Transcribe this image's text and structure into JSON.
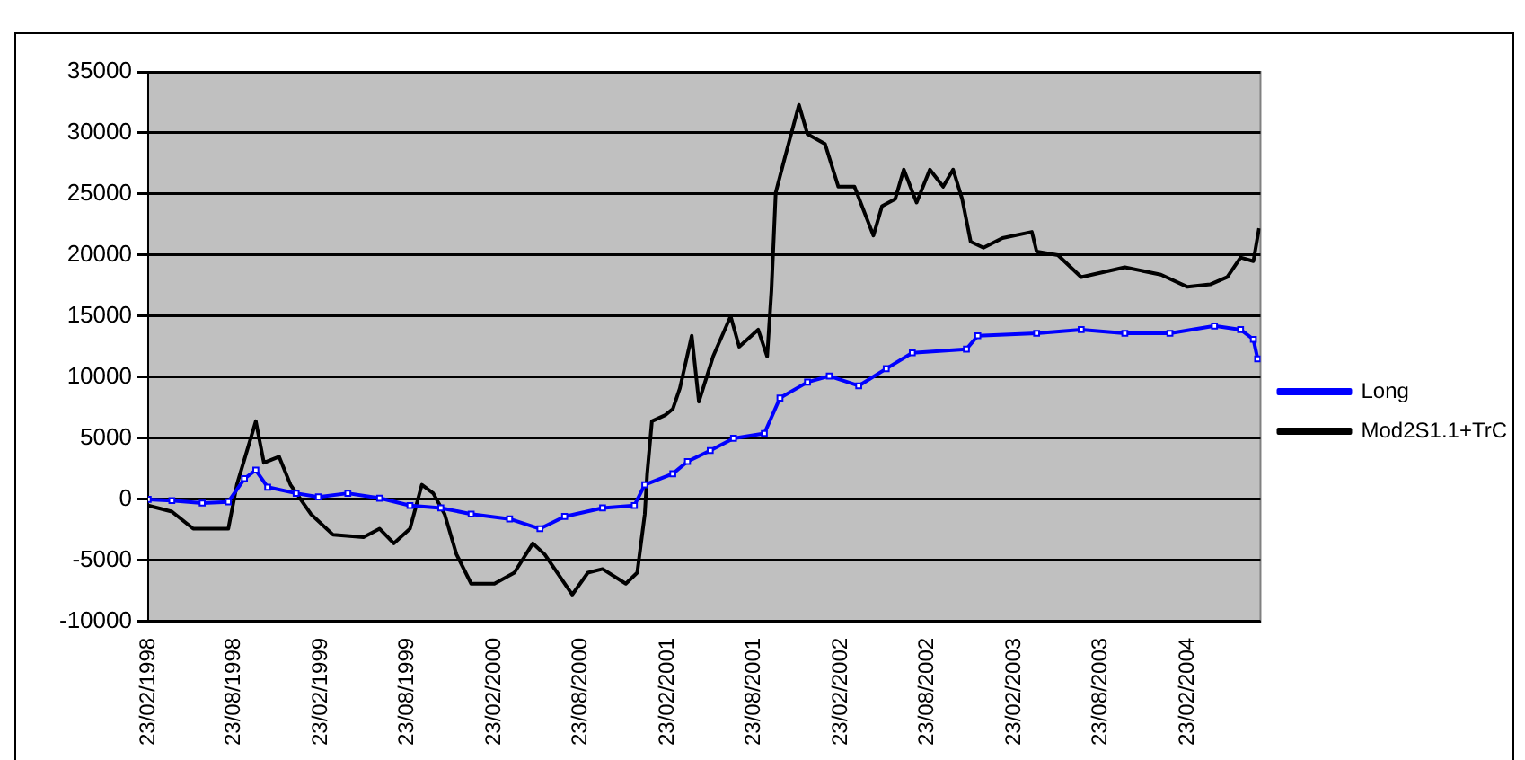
{
  "chart_data": {
    "type": "line",
    "legend": "right",
    "grid": "y",
    "xlim": [
      "1998-02-23",
      "2004-07-26"
    ],
    "xticks": [
      {
        "value": "1998-02-23",
        "label": "23/02/1998"
      },
      {
        "value": "1998-08-23",
        "label": "23/08/1998"
      },
      {
        "value": "1999-02-23",
        "label": "23/02/1999"
      },
      {
        "value": "1999-08-23",
        "label": "23/08/1999"
      },
      {
        "value": "2000-02-23",
        "label": "23/02/2000"
      },
      {
        "value": "2000-08-23",
        "label": "23/08/2000"
      },
      {
        "value": "2001-02-23",
        "label": "23/02/2001"
      },
      {
        "value": "2001-08-23",
        "label": "23/08/2001"
      },
      {
        "value": "2002-02-23",
        "label": "23/02/2002"
      },
      {
        "value": "2002-08-23",
        "label": "23/08/2002"
      },
      {
        "value": "2003-02-23",
        "label": "23/02/2003"
      },
      {
        "value": "2003-08-23",
        "label": "23/08/2003"
      },
      {
        "value": "2004-02-23",
        "label": "23/02/2004"
      }
    ],
    "ylim": [
      -10000,
      35000
    ],
    "yticks": [
      -10000,
      -5000,
      0,
      5000,
      10000,
      15000,
      20000,
      25000,
      30000,
      35000
    ],
    "series": [
      {
        "name": "Mod2S1.1+TrC",
        "color": "#000000",
        "marker": "none",
        "x": [
          "1998-02-23",
          "1998-04-14",
          "1998-05-29",
          "1998-08-11",
          "1998-08-29",
          "1998-10-08",
          "1998-10-25",
          "1998-11-26",
          "1998-12-20",
          "1999-02-01",
          "1999-03-20",
          "1999-05-23",
          "1999-06-26",
          "1999-07-26",
          "1999-08-29",
          "1999-09-23",
          "1999-10-17",
          "1999-11-10",
          "1999-12-05",
          "2000-01-05",
          "2000-02-23",
          "2000-04-05",
          "2000-05-14",
          "2000-06-08",
          "2000-08-05",
          "2000-09-07",
          "2000-10-08",
          "2000-11-26",
          "2000-12-20",
          "2001-01-05",
          "2001-01-10",
          "2001-01-20",
          "2001-02-17",
          "2001-03-05",
          "2001-03-20",
          "2001-04-14",
          "2001-04-29",
          "2001-05-29",
          "2001-07-05",
          "2001-07-23",
          "2001-09-01",
          "2001-09-20",
          "2001-09-29",
          "2001-10-08",
          "2001-10-26",
          "2001-11-26",
          "2001-12-14",
          "2002-01-20",
          "2002-02-17",
          "2002-03-23",
          "2002-05-02",
          "2002-05-20",
          "2002-06-17",
          "2002-07-05",
          "2002-08-01",
          "2002-08-29",
          "2002-09-26",
          "2002-10-17",
          "2002-11-05",
          "2002-11-23",
          "2002-12-20",
          "2003-01-29",
          "2003-04-01",
          "2003-04-11",
          "2003-05-26",
          "2003-07-14",
          "2003-10-14",
          "2003-12-29",
          "2004-02-23",
          "2004-04-11",
          "2004-05-17",
          "2004-06-14",
          "2004-07-11",
          "2004-07-23"
        ],
        "values": [
          -500,
          -1000,
          -2400,
          -2400,
          1200,
          6400,
          3000,
          3500,
          1200,
          -1200,
          -2900,
          -3100,
          -2400,
          -3600,
          -2400,
          1200,
          500,
          -1200,
          -4500,
          -6900,
          -6900,
          -6000,
          -3600,
          -4500,
          -7800,
          -6000,
          -5700,
          -6900,
          -6000,
          -1200,
          2100,
          6400,
          6900,
          7400,
          9100,
          13400,
          8000,
          11700,
          15000,
          12500,
          13900,
          11700,
          17100,
          25100,
          27800,
          32300,
          29900,
          29100,
          25600,
          25600,
          21600,
          24000,
          24600,
          27000,
          24300,
          27000,
          25600,
          27000,
          24600,
          21100,
          20600,
          21400,
          21900,
          20300,
          20000,
          18200,
          19000,
          18400,
          17400,
          17600,
          18200,
          19800,
          19500,
          22200
        ]
      },
      {
        "name": "Long",
        "color": "#0000ff",
        "marker": "square",
        "x": [
          "1998-02-23",
          "1998-04-14",
          "1998-06-17",
          "1998-08-11",
          "1998-09-14",
          "1998-10-08",
          "1998-11-02",
          "1999-01-01",
          "1999-02-17",
          "1999-04-20",
          "1999-06-26",
          "1999-08-29",
          "1999-11-02",
          "2000-01-05",
          "2000-03-26",
          "2000-05-29",
          "2000-07-20",
          "2000-10-08",
          "2000-12-14",
          "2001-01-05",
          "2001-03-05",
          "2001-04-05",
          "2001-05-23",
          "2001-07-11",
          "2001-09-14",
          "2001-10-17",
          "2001-12-14",
          "2002-01-29",
          "2002-04-01",
          "2002-05-29",
          "2002-07-23",
          "2002-11-14",
          "2002-12-08",
          "2003-04-11",
          "2003-07-14",
          "2003-10-14",
          "2004-01-17",
          "2004-04-20",
          "2004-06-14",
          "2004-07-11",
          "2004-07-20"
        ],
        "values": [
          0,
          -100,
          -300,
          -200,
          1700,
          2400,
          1000,
          500,
          200,
          500,
          100,
          -500,
          -700,
          -1200,
          -1600,
          -2400,
          -1400,
          -700,
          -500,
          1200,
          2100,
          3100,
          4000,
          5000,
          5400,
          8300,
          9600,
          10100,
          9300,
          10700,
          12000,
          12300,
          13400,
          13600,
          13900,
          13600,
          13600,
          14200,
          13900,
          13100,
          11500
        ]
      }
    ]
  }
}
